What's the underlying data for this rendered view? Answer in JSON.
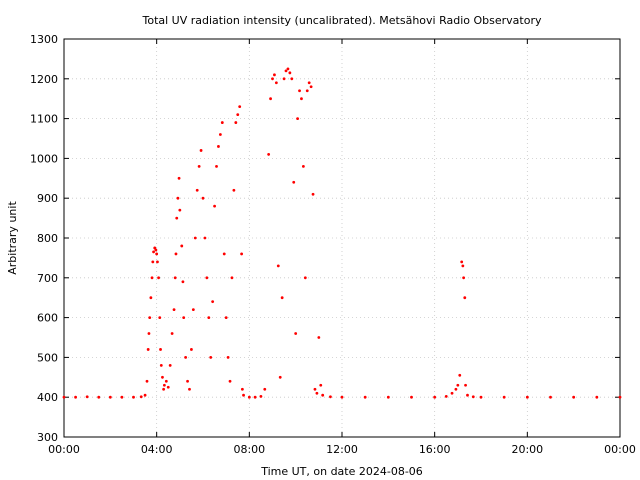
{
  "chart_data": {
    "type": "scatter",
    "title": "Total UV radiation intensity (uncalibrated). Metsähovi Radio Observatory",
    "xlabel": "Time UT, on date 2024-08-06",
    "ylabel": "Arbitrary unit",
    "xlim": [
      "00:00",
      "24:00"
    ],
    "ylim": [
      300,
      1300
    ],
    "x_ticks": [
      "00:00",
      "04:00",
      "08:00",
      "12:00",
      "16:00",
      "20:00",
      "00:00"
    ],
    "y_ticks": [
      300,
      400,
      500,
      600,
      700,
      800,
      900,
      1000,
      1100,
      1200,
      1300
    ],
    "grid": true,
    "marker_color": "#ff0000",
    "series": [
      {
        "values_note": "",
        "points": [
          [
            "00:00",
            400
          ],
          [
            "00:30",
            400
          ],
          [
            "01:00",
            401
          ],
          [
            "01:30",
            400
          ],
          [
            "02:00",
            400
          ],
          [
            "02:30",
            400
          ],
          [
            "03:00",
            400
          ],
          [
            "03:20",
            401
          ],
          [
            "03:30",
            405
          ],
          [
            "03:35",
            440
          ],
          [
            "03:38",
            520
          ],
          [
            "03:40",
            560
          ],
          [
            "03:42",
            600
          ],
          [
            "03:45",
            650
          ],
          [
            "03:48",
            700
          ],
          [
            "03:50",
            740
          ],
          [
            "03:52",
            765
          ],
          [
            "03:55",
            775
          ],
          [
            "03:58",
            770
          ],
          [
            "04:00",
            760
          ],
          [
            "04:02",
            740
          ],
          [
            "04:05",
            700
          ],
          [
            "04:08",
            600
          ],
          [
            "04:10",
            520
          ],
          [
            "04:12",
            480
          ],
          [
            "04:15",
            450
          ],
          [
            "04:18",
            420
          ],
          [
            "04:20",
            430
          ],
          [
            "04:25",
            440
          ],
          [
            "04:30",
            425
          ],
          [
            "04:35",
            480
          ],
          [
            "04:40",
            560
          ],
          [
            "04:45",
            620
          ],
          [
            "04:48",
            700
          ],
          [
            "04:50",
            760
          ],
          [
            "04:52",
            850
          ],
          [
            "04:55",
            900
          ],
          [
            "04:58",
            950
          ],
          [
            "05:00",
            870
          ],
          [
            "05:05",
            780
          ],
          [
            "05:08",
            690
          ],
          [
            "05:10",
            600
          ],
          [
            "05:15",
            500
          ],
          [
            "05:20",
            440
          ],
          [
            "05:25",
            420
          ],
          [
            "05:30",
            520
          ],
          [
            "05:35",
            620
          ],
          [
            "05:40",
            800
          ],
          [
            "05:45",
            920
          ],
          [
            "05:50",
            980
          ],
          [
            "05:55",
            1020
          ],
          [
            "06:00",
            900
          ],
          [
            "06:05",
            800
          ],
          [
            "06:10",
            700
          ],
          [
            "06:15",
            600
          ],
          [
            "06:20",
            500
          ],
          [
            "06:25",
            640
          ],
          [
            "06:30",
            880
          ],
          [
            "06:35",
            980
          ],
          [
            "06:40",
            1030
          ],
          [
            "06:45",
            1060
          ],
          [
            "06:50",
            1090
          ],
          [
            "06:55",
            760
          ],
          [
            "07:00",
            600
          ],
          [
            "07:05",
            500
          ],
          [
            "07:10",
            440
          ],
          [
            "07:15",
            700
          ],
          [
            "07:20",
            920
          ],
          [
            "07:25",
            1090
          ],
          [
            "07:30",
            1110
          ],
          [
            "07:35",
            1130
          ],
          [
            "07:40",
            760
          ],
          [
            "07:42",
            420
          ],
          [
            "07:45",
            405
          ],
          [
            "08:00",
            400
          ],
          [
            "08:15",
            400
          ],
          [
            "08:30",
            402
          ],
          [
            "08:40",
            420
          ],
          [
            "08:50",
            1010
          ],
          [
            "08:55",
            1150
          ],
          [
            "09:00",
            1200
          ],
          [
            "09:05",
            1210
          ],
          [
            "09:10",
            1190
          ],
          [
            "09:15",
            730
          ],
          [
            "09:20",
            450
          ],
          [
            "09:25",
            650
          ],
          [
            "09:30",
            1200
          ],
          [
            "09:35",
            1220
          ],
          [
            "09:40",
            1225
          ],
          [
            "09:45",
            1215
          ],
          [
            "09:50",
            1200
          ],
          [
            "09:55",
            940
          ],
          [
            "10:00",
            560
          ],
          [
            "10:05",
            1100
          ],
          [
            "10:10",
            1170
          ],
          [
            "10:15",
            1150
          ],
          [
            "10:20",
            980
          ],
          [
            "10:25",
            700
          ],
          [
            "10:30",
            1170
          ],
          [
            "10:35",
            1190
          ],
          [
            "10:40",
            1180
          ],
          [
            "10:45",
            910
          ],
          [
            "10:50",
            420
          ],
          [
            "10:55",
            410
          ],
          [
            "11:00",
            550
          ],
          [
            "11:05",
            430
          ],
          [
            "11:10",
            405
          ],
          [
            "11:30",
            401
          ],
          [
            "12:00",
            400
          ],
          [
            "13:00",
            400
          ],
          [
            "14:00",
            400
          ],
          [
            "15:00",
            400
          ],
          [
            "16:00",
            400
          ],
          [
            "16:30",
            402
          ],
          [
            "16:45",
            410
          ],
          [
            "16:55",
            420
          ],
          [
            "17:00",
            430
          ],
          [
            "17:05",
            455
          ],
          [
            "17:10",
            740
          ],
          [
            "17:13",
            730
          ],
          [
            "17:15",
            700
          ],
          [
            "17:18",
            650
          ],
          [
            "17:20",
            430
          ],
          [
            "17:25",
            405
          ],
          [
            "17:40",
            401
          ],
          [
            "18:00",
            400
          ],
          [
            "19:00",
            400
          ],
          [
            "20:00",
            400
          ],
          [
            "21:00",
            400
          ],
          [
            "22:00",
            400
          ],
          [
            "23:00",
            400
          ],
          [
            "24:00",
            400
          ]
        ]
      }
    ]
  }
}
